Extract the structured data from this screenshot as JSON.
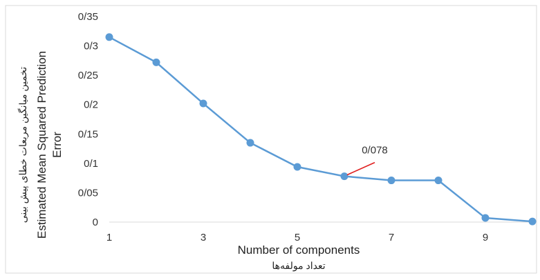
{
  "chart_data": {
    "type": "line",
    "x": [
      1,
      2,
      3,
      4,
      5,
      6,
      7,
      8,
      9,
      10
    ],
    "series": [
      {
        "values": [
          0.315,
          0.272,
          0.202,
          0.135,
          0.094,
          0.078,
          0.071,
          0.071,
          0.007,
          0.001
        ]
      }
    ],
    "xlabel": "Number of components",
    "xlabel_fa": "تعداد مولفه‌ها",
    "ylabel_line1": "Estimated Mean Squared Prediction",
    "ylabel_line2": "Error",
    "ylabel_fa": "تخمین میانگین مربعات خطای پیش بینی",
    "xlim": [
      1,
      10
    ],
    "ylim": [
      0,
      0.35
    ],
    "x_ticks": [
      1,
      3,
      5,
      7,
      9
    ],
    "x_tick_labels": [
      "1",
      "3",
      "5",
      "7",
      "9"
    ],
    "y_ticks": [
      0,
      0.05,
      0.1,
      0.15,
      0.2,
      0.25,
      0.3,
      0.35
    ],
    "y_tick_labels": [
      "0",
      "0/05",
      "0/1",
      "0/15",
      "0/2",
      "0/25",
      "0/3",
      "0/35"
    ],
    "annotation": {
      "label": "0/078",
      "point_index": 5,
      "arrow_color": "#e02020"
    },
    "line_color": "#5b9bd5",
    "grid": false,
    "legend": "none"
  }
}
